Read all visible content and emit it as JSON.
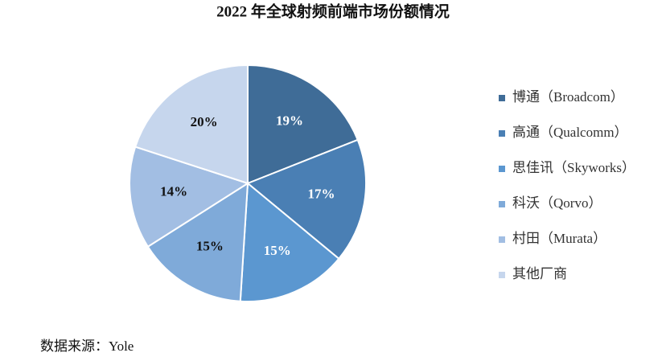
{
  "chart_data": {
    "type": "pie",
    "title": "2022 年全球射频前端市场份额情况",
    "categories": [
      "博通（Broadcom）",
      "高通（Qualcomm）",
      "思佳讯（Skyworks）",
      "科沃（Qorvo）",
      "村田（Murata）",
      "其他厂商"
    ],
    "values": [
      19,
      17,
      15,
      15,
      14,
      20
    ],
    "value_labels": [
      "19%",
      "17%",
      "15%",
      "15%",
      "14%",
      "20%"
    ],
    "colors": [
      "#3f6c97",
      "#4a7fb4",
      "#5b97d0",
      "#7faad9",
      "#a2bee3",
      "#c6d6ed"
    ],
    "legend": "right",
    "source": "数据来源：Yole"
  }
}
